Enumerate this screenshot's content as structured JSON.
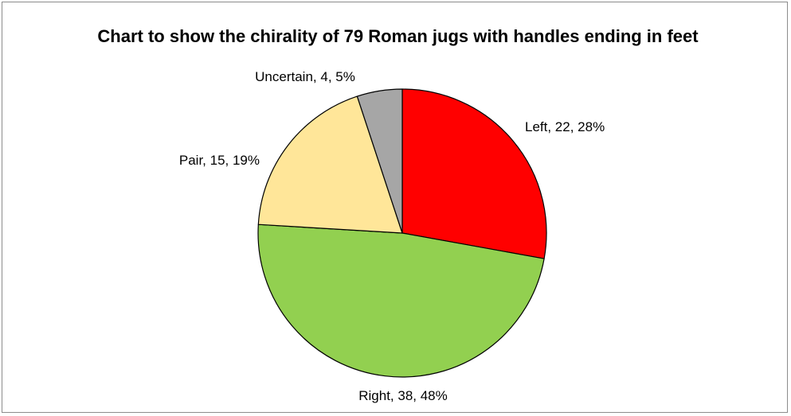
{
  "chart_data": {
    "type": "pie",
    "title": "Chart to show the chirality of 79 Roman jugs with handles ending in feet",
    "slices": [
      {
        "label": "Left",
        "value": 22,
        "percent": "28%",
        "color": "#ff0000"
      },
      {
        "label": "Right",
        "value": 38,
        "percent": "48%",
        "color": "#92d050"
      },
      {
        "label": "Pair",
        "value": 15,
        "percent": "19%",
        "color": "#ffe699"
      },
      {
        "label": "Uncertain",
        "value": 4,
        "percent": "5%",
        "color": "#a6a6a6"
      }
    ],
    "data_labels": [
      "Left, 22, 28%",
      "Right, 38, 48%",
      "Pair, 15, 19%",
      "Uncertain, 4, 5%"
    ],
    "legend": "none"
  }
}
